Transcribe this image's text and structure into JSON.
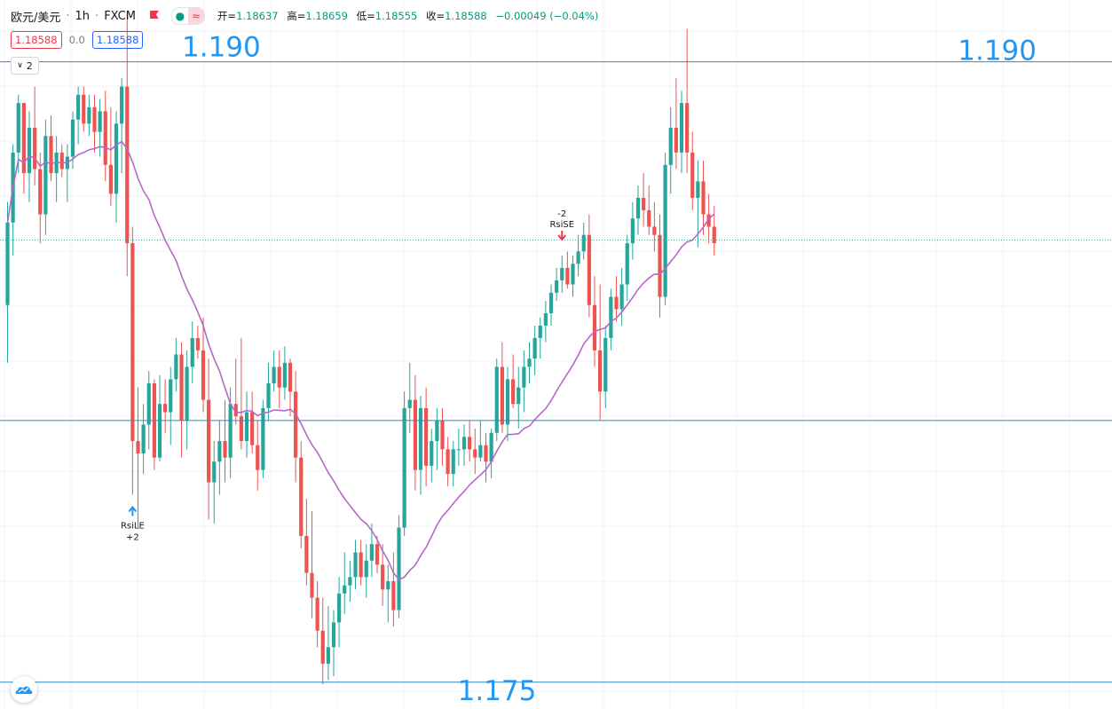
{
  "header": {
    "symbol": "欧元/美元",
    "sep": "·",
    "interval": "1h",
    "source": "FXCM",
    "open_label": "开=",
    "open_value": "1.18637",
    "high_label": "高=",
    "high_value": "1.18659",
    "low_label": "低=",
    "low_value": "1.18555",
    "close_label": "收=",
    "close_value": "1.18588",
    "change": "−0.00049 (−0.04%)"
  },
  "trade_panel": {
    "sell_price": "1.18588",
    "spread": "0.0",
    "buy_price": "1.18588"
  },
  "indicators_toggle": {
    "label": "2"
  },
  "colors": {
    "up": "#26a69a",
    "down": "#ef5350",
    "ma": "#b768c6",
    "level": "#2196f3",
    "line": "#2b8cbe"
  },
  "chart_data": {
    "type": "candlestick",
    "title": "",
    "xlabel": "",
    "ylabel": "",
    "ylim": [
      1.1745,
      1.1917
    ],
    "grid": true,
    "last_price": 1.18588,
    "levels": [
      {
        "price": 1.1902,
        "label": "1.190",
        "label_sides": [
          "left-mid",
          "right"
        ]
      },
      {
        "price": 1.1815,
        "label": ""
      },
      {
        "price": 1.17515,
        "label": "1.175",
        "label_sides": [
          "center-below"
        ]
      }
    ],
    "signals": [
      {
        "index": 23,
        "direction": "up",
        "name": "RsiLE",
        "qty": "+2"
      },
      {
        "index": 102,
        "direction": "down",
        "name": "RsiSE",
        "qty": "-2"
      }
    ],
    "ohlc": [
      [
        1.1843,
        1.1868,
        1.1829,
        1.1863
      ],
      [
        1.1863,
        1.1882,
        1.1855,
        1.188
      ],
      [
        1.188,
        1.1894,
        1.1875,
        1.1892
      ],
      [
        1.1892,
        1.1892,
        1.187,
        1.1875
      ],
      [
        1.1875,
        1.189,
        1.1868,
        1.1886
      ],
      [
        1.1886,
        1.1896,
        1.1872,
        1.1876
      ],
      [
        1.1876,
        1.188,
        1.1858,
        1.1865
      ],
      [
        1.1865,
        1.1888,
        1.186,
        1.1884
      ],
      [
        1.1884,
        1.1889,
        1.1873,
        1.1875
      ],
      [
        1.1875,
        1.1884,
        1.1868,
        1.188
      ],
      [
        1.188,
        1.1882,
        1.1874,
        1.1876
      ],
      [
        1.1876,
        1.1882,
        1.1868,
        1.1879
      ],
      [
        1.1879,
        1.189,
        1.1876,
        1.1888
      ],
      [
        1.1888,
        1.1896,
        1.1882,
        1.1894
      ],
      [
        1.1894,
        1.1896,
        1.1885,
        1.1887
      ],
      [
        1.1887,
        1.1894,
        1.1884,
        1.1891
      ],
      [
        1.1891,
        1.1894,
        1.188,
        1.1885
      ],
      [
        1.1885,
        1.1893,
        1.1879,
        1.189
      ],
      [
        1.189,
        1.1895,
        1.1873,
        1.1877
      ],
      [
        1.1877,
        1.1891,
        1.1867,
        1.187
      ],
      [
        1.187,
        1.189,
        1.1863,
        1.1887
      ],
      [
        1.1887,
        1.1898,
        1.1875,
        1.1896
      ],
      [
        1.1896,
        1.1914,
        1.185,
        1.1858
      ],
      [
        1.1858,
        1.1862,
        1.1797,
        1.181
      ],
      [
        1.181,
        1.1823,
        1.1789,
        1.1807
      ],
      [
        1.1807,
        1.1819,
        1.1802,
        1.1814
      ],
      [
        1.1814,
        1.1827,
        1.1808,
        1.1824
      ],
      [
        1.1824,
        1.1825,
        1.1803,
        1.1806
      ],
      [
        1.1806,
        1.1826,
        1.1805,
        1.1819
      ],
      [
        1.1819,
        1.1825,
        1.1812,
        1.1817
      ],
      [
        1.1817,
        1.1828,
        1.1809,
        1.1825
      ],
      [
        1.1825,
        1.1835,
        1.1822,
        1.1831
      ],
      [
        1.1831,
        1.1834,
        1.1806,
        1.1815
      ],
      [
        1.1815,
        1.1832,
        1.1808,
        1.1828
      ],
      [
        1.1828,
        1.1839,
        1.1824,
        1.1835
      ],
      [
        1.1835,
        1.1838,
        1.183,
        1.1832
      ],
      [
        1.1832,
        1.184,
        1.1817,
        1.182
      ],
      [
        1.182,
        1.183,
        1.1791,
        1.18
      ],
      [
        1.18,
        1.181,
        1.179,
        1.1805
      ],
      [
        1.1805,
        1.1815,
        1.1797,
        1.181
      ],
      [
        1.181,
        1.182,
        1.18,
        1.1806
      ],
      [
        1.1806,
        1.1823,
        1.1801,
        1.1819
      ],
      [
        1.1819,
        1.183,
        1.1814,
        1.1816
      ],
      [
        1.1816,
        1.1835,
        1.1808,
        1.181
      ],
      [
        1.181,
        1.1822,
        1.1806,
        1.1817
      ],
      [
        1.1817,
        1.1822,
        1.1807,
        1.1809
      ],
      [
        1.1809,
        1.1815,
        1.1798,
        1.1803
      ],
      [
        1.1803,
        1.182,
        1.1801,
        1.1818
      ],
      [
        1.1818,
        1.1829,
        1.1815,
        1.1824
      ],
      [
        1.1824,
        1.1832,
        1.1822,
        1.1828
      ],
      [
        1.1828,
        1.1832,
        1.1818,
        1.1823
      ],
      [
        1.1823,
        1.1833,
        1.182,
        1.1829
      ],
      [
        1.1829,
        1.183,
        1.1816,
        1.1822
      ],
      [
        1.1822,
        1.1827,
        1.18,
        1.1806
      ],
      [
        1.1806,
        1.181,
        1.1784,
        1.1787
      ],
      [
        1.1787,
        1.1796,
        1.1775,
        1.1778
      ],
      [
        1.1778,
        1.1793,
        1.1767,
        1.1772
      ],
      [
        1.1772,
        1.1776,
        1.176,
        1.1764
      ],
      [
        1.1764,
        1.1772,
        1.1751,
        1.1756
      ],
      [
        1.1756,
        1.177,
        1.1752,
        1.176
      ],
      [
        1.176,
        1.1769,
        1.1753,
        1.1766
      ],
      [
        1.1766,
        1.1777,
        1.176,
        1.1773
      ],
      [
        1.1773,
        1.1783,
        1.1768,
        1.1775
      ],
      [
        1.1775,
        1.1781,
        1.1771,
        1.1777
      ],
      [
        1.1777,
        1.1786,
        1.1774,
        1.1783
      ],
      [
        1.1783,
        1.1786,
        1.1775,
        1.1777
      ],
      [
        1.1777,
        1.1785,
        1.1772,
        1.1781
      ],
      [
        1.1781,
        1.179,
        1.1777,
        1.1785
      ],
      [
        1.1785,
        1.1787,
        1.1778,
        1.178
      ],
      [
        1.178,
        1.1785,
        1.177,
        1.1774
      ],
      [
        1.1774,
        1.178,
        1.1766,
        1.1776
      ],
      [
        1.1776,
        1.1783,
        1.1765,
        1.1769
      ],
      [
        1.1769,
        1.1792,
        1.1767,
        1.1789
      ],
      [
        1.1789,
        1.1822,
        1.1787,
        1.1818
      ],
      [
        1.1818,
        1.1829,
        1.1812,
        1.182
      ],
      [
        1.182,
        1.1826,
        1.1798,
        1.1803
      ],
      [
        1.1803,
        1.1821,
        1.1797,
        1.1818
      ],
      [
        1.1818,
        1.1823,
        1.1799,
        1.1804
      ],
      [
        1.1804,
        1.1813,
        1.18,
        1.181
      ],
      [
        1.181,
        1.1818,
        1.1803,
        1.1815
      ],
      [
        1.1815,
        1.1818,
        1.1804,
        1.1808
      ],
      [
        1.1808,
        1.1811,
        1.1799,
        1.1802
      ],
      [
        1.1802,
        1.181,
        1.1799,
        1.1808
      ],
      [
        1.1808,
        1.1813,
        1.1804,
        1.1808
      ],
      [
        1.1808,
        1.1814,
        1.1804,
        1.1811
      ],
      [
        1.1811,
        1.1815,
        1.1805,
        1.1808
      ],
      [
        1.1808,
        1.1813,
        1.1802,
        1.1806
      ],
      [
        1.1806,
        1.1815,
        1.1805,
        1.1809
      ],
      [
        1.1809,
        1.1812,
        1.18,
        1.1805
      ],
      [
        1.1805,
        1.1813,
        1.1801,
        1.1812
      ],
      [
        1.1812,
        1.183,
        1.181,
        1.1828
      ],
      [
        1.1828,
        1.1834,
        1.1812,
        1.1814
      ],
      [
        1.1814,
        1.1828,
        1.181,
        1.1825
      ],
      [
        1.1825,
        1.1831,
        1.1818,
        1.1819
      ],
      [
        1.1819,
        1.1828,
        1.1813,
        1.1823
      ],
      [
        1.1823,
        1.1832,
        1.1817,
        1.1828
      ],
      [
        1.1828,
        1.1834,
        1.1824,
        1.183
      ],
      [
        1.183,
        1.1838,
        1.1826,
        1.1835
      ],
      [
        1.1835,
        1.184,
        1.183,
        1.1838
      ],
      [
        1.1838,
        1.1844,
        1.1834,
        1.1841
      ],
      [
        1.1841,
        1.1848,
        1.1838,
        1.1846
      ],
      [
        1.1846,
        1.1852,
        1.1844,
        1.1849
      ],
      [
        1.1849,
        1.1855,
        1.1846,
        1.1852
      ],
      [
        1.1852,
        1.1856,
        1.1847,
        1.1848
      ],
      [
        1.1848,
        1.1855,
        1.1845,
        1.1853
      ],
      [
        1.1853,
        1.186,
        1.185,
        1.1856
      ],
      [
        1.1856,
        1.1863,
        1.1854,
        1.186
      ],
      [
        1.186,
        1.1865,
        1.184,
        1.1843
      ],
      [
        1.1843,
        1.185,
        1.1828,
        1.1832
      ],
      [
        1.1832,
        1.1848,
        1.1815,
        1.1822
      ],
      [
        1.1822,
        1.1838,
        1.1818,
        1.1835
      ],
      [
        1.1835,
        1.1847,
        1.1832,
        1.1845
      ],
      [
        1.1845,
        1.185,
        1.1839,
        1.1842
      ],
      [
        1.1842,
        1.1852,
        1.1838,
        1.1848
      ],
      [
        1.1848,
        1.186,
        1.1844,
        1.1858
      ],
      [
        1.1858,
        1.1868,
        1.1854,
        1.1864
      ],
      [
        1.1864,
        1.1872,
        1.186,
        1.1869
      ],
      [
        1.1869,
        1.1875,
        1.1862,
        1.1866
      ],
      [
        1.1866,
        1.1872,
        1.186,
        1.1862
      ],
      [
        1.1862,
        1.1868,
        1.1856,
        1.186
      ],
      [
        1.186,
        1.1865,
        1.184,
        1.1845
      ],
      [
        1.1845,
        1.188,
        1.1843,
        1.1877
      ],
      [
        1.1877,
        1.1891,
        1.187,
        1.1886
      ],
      [
        1.1886,
        1.1898,
        1.1876,
        1.188
      ],
      [
        1.188,
        1.1895,
        1.1875,
        1.1892
      ],
      [
        1.1892,
        1.191,
        1.1875,
        1.188
      ],
      [
        1.188,
        1.1885,
        1.1866,
        1.1869
      ],
      [
        1.1869,
        1.1878,
        1.1857,
        1.1873
      ],
      [
        1.1873,
        1.1878,
        1.186,
        1.1865
      ],
      [
        1.1865,
        1.187,
        1.1858,
        1.1862
      ],
      [
        1.1862,
        1.1867,
        1.1855,
        1.1858
      ]
    ]
  }
}
